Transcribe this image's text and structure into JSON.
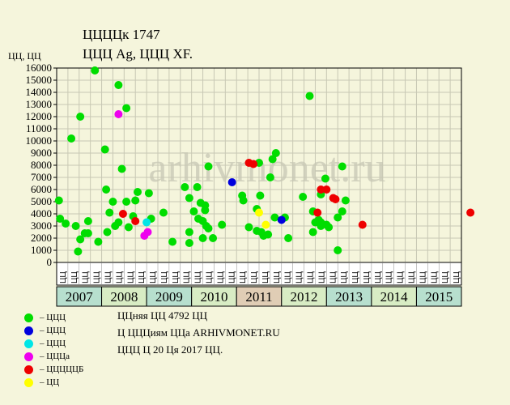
{
  "header": {
    "title": "ЦЦЦЦк 1747",
    "subtitle": "ЦЦЦ Ag, ЦЦЦ XF.",
    "y_unit": "ЦЦ, ЦЦ"
  },
  "colors": {
    "background": "#f5f5dc",
    "plot_background": "#f5f5dc",
    "grid": "#c8c8b4",
    "watermark": "#d2d2be",
    "year_band_a": "#b7dfce",
    "year_band_b": "#d8ecc4",
    "year_band_2011": "#e0cdb5"
  },
  "watermark": "ARHIVMONET.RU",
  "chart_data": {
    "type": "scatter",
    "ylim": [
      0,
      16000
    ],
    "yticks": [
      0,
      1000,
      2000,
      3000,
      4000,
      5000,
      6000,
      7000,
      8000,
      9000,
      10000,
      11000,
      12000,
      13000,
      14000,
      15000,
      16000
    ],
    "grid": true,
    "x_periods": [
      "ЦЦ",
      "ЦЦ",
      "ЦЦ",
      "ЦЦ",
      "ЦЦ",
      "ЦЦ",
      "ЦЦ",
      "ЦЦ",
      "ЦЦ",
      "ЦЦ",
      "ЦЦ",
      "ЦЦ",
      "ЦЦ",
      "ЦЦ",
      "ЦЦ",
      "ЦЦ",
      "ЦЦ",
      "ЦЦ",
      "ЦЦ",
      "ЦЦ",
      "ЦЦ",
      "ЦЦ",
      "ЦЦ",
      "ЦЦ",
      "ЦЦ",
      "ЦЦ",
      "ЦЦ",
      "ЦЦ",
      "ЦЦ",
      "ЦЦ",
      "ЦЦ",
      "ЦЦ",
      "ЦЦ",
      "ЦЦ",
      "ЦЦ",
      "ЦЦ"
    ],
    "years": [
      "2007",
      "2008",
      "2009",
      "2010",
      "2011",
      "2012",
      "2013",
      "2014",
      "2015"
    ],
    "periods_per_year": 4,
    "series": [
      {
        "name": "ЦЦЦ",
        "color": "#00dd00",
        "points": [
          [
            0.2,
            5100
          ],
          [
            0.3,
            3600
          ],
          [
            0.8,
            3200
          ],
          [
            1.3,
            10200
          ],
          [
            1.7,
            3000
          ],
          [
            1.9,
            900
          ],
          [
            2.1,
            1900
          ],
          [
            2.1,
            12000
          ],
          [
            2.5,
            2400
          ],
          [
            2.8,
            3400
          ],
          [
            2.8,
            2400
          ],
          [
            3.4,
            15800
          ],
          [
            3.7,
            1700
          ],
          [
            4.3,
            9300
          ],
          [
            4.4,
            6000
          ],
          [
            4.5,
            2500
          ],
          [
            4.7,
            4100
          ],
          [
            5.0,
            5000
          ],
          [
            5.2,
            3000
          ],
          [
            5.5,
            3300
          ],
          [
            5.5,
            14600
          ],
          [
            5.8,
            7700
          ],
          [
            6.2,
            5000
          ],
          [
            6.2,
            12700
          ],
          [
            6.4,
            2900
          ],
          [
            6.8,
            3800
          ],
          [
            7.0,
            5100
          ],
          [
            7.2,
            5800
          ],
          [
            8.2,
            5700
          ],
          [
            8.4,
            3600
          ],
          [
            9.5,
            4100
          ],
          [
            10.3,
            1700
          ],
          [
            11.4,
            6200
          ],
          [
            11.8,
            5300
          ],
          [
            11.8,
            2500
          ],
          [
            11.8,
            1600
          ],
          [
            12.2,
            4200
          ],
          [
            12.5,
            6200
          ],
          [
            12.6,
            3600
          ],
          [
            12.8,
            4900
          ],
          [
            13.0,
            3400
          ],
          [
            13.0,
            2000
          ],
          [
            13.2,
            4700
          ],
          [
            13.2,
            4300
          ],
          [
            13.3,
            3000
          ],
          [
            13.5,
            7900
          ],
          [
            13.5,
            2800
          ],
          [
            13.9,
            2000
          ],
          [
            14.7,
            3100
          ],
          [
            16.5,
            5500
          ],
          [
            16.6,
            5100
          ],
          [
            17.1,
            2900
          ],
          [
            17.8,
            2600
          ],
          [
            17.8,
            4400
          ],
          [
            18.0,
            8200
          ],
          [
            18.1,
            5500
          ],
          [
            18.2,
            2500
          ],
          [
            18.4,
            2200
          ],
          [
            18.8,
            2300
          ],
          [
            19.0,
            7000
          ],
          [
            19.2,
            8500
          ],
          [
            19.4,
            3700
          ],
          [
            19.5,
            9000
          ],
          [
            20.3,
            3700
          ],
          [
            20.6,
            2000
          ],
          [
            21.9,
            5400
          ],
          [
            22.5,
            13700
          ],
          [
            22.8,
            2500
          ],
          [
            22.8,
            4200
          ],
          [
            23.0,
            3300
          ],
          [
            23.3,
            3500
          ],
          [
            23.5,
            5600
          ],
          [
            23.5,
            3000
          ],
          [
            23.5,
            3300
          ],
          [
            23.9,
            6900
          ],
          [
            24.0,
            3100
          ],
          [
            24.2,
            2900
          ],
          [
            25.0,
            3700
          ],
          [
            25.0,
            1000
          ],
          [
            25.4,
            7900
          ],
          [
            25.4,
            4200
          ],
          [
            25.7,
            5100
          ]
        ]
      },
      {
        "name": "ЦЦЦ",
        "color": "#0000dd",
        "points": [
          [
            15.6,
            6600
          ],
          [
            20.0,
            3500
          ]
        ]
      },
      {
        "name": "ЦЦЦ",
        "color": "#00e6e6",
        "points": [
          [
            8.0,
            3300
          ]
        ]
      },
      {
        "name": "ЦЦЦа",
        "color": "#ee00ee",
        "points": [
          [
            5.5,
            12200
          ],
          [
            7.8,
            2200
          ],
          [
            8.1,
            2500
          ]
        ]
      },
      {
        "name": "ЦЦЦЦЦБ",
        "color": "#ee0000",
        "points": [
          [
            5.9,
            4000
          ],
          [
            7.0,
            3400
          ],
          [
            17.1,
            8200
          ],
          [
            17.5,
            8100
          ],
          [
            23.2,
            4100
          ],
          [
            23.5,
            6000
          ],
          [
            24.0,
            6000
          ],
          [
            24.6,
            5300
          ],
          [
            24.8,
            5200
          ],
          [
            27.2,
            3100
          ],
          [
            36.8,
            4100
          ]
        ]
      },
      {
        "name": "ЦЦ",
        "color": "#ffff00",
        "points": [
          [
            18.0,
            4100
          ],
          [
            18.6,
            3100
          ]
        ]
      }
    ]
  },
  "legend": [
    {
      "color": "#00dd00",
      "label": "– ЦЦЦ"
    },
    {
      "color": "#0000dd",
      "label": "– ЦЦЦ"
    },
    {
      "color": "#00e6e6",
      "label": "– ЦЦЦ"
    },
    {
      "color": "#ee00ee",
      "label": "– ЦЦЦа"
    },
    {
      "color": "#ee0000",
      "label": "– ЦЦЦЦЦБ"
    },
    {
      "color": "#ffff00",
      "label": "– ЦЦ"
    }
  ],
  "notes": {
    "line1": "ЦЦняя ЦЦ 4792 ЦЦ",
    "line2": "Ц ЦЦЦиям ЦЦа ARHIVMONET.RU",
    "line3": "ЦЦЦ Ц 20 Ця 2017 ЦЦ."
  }
}
